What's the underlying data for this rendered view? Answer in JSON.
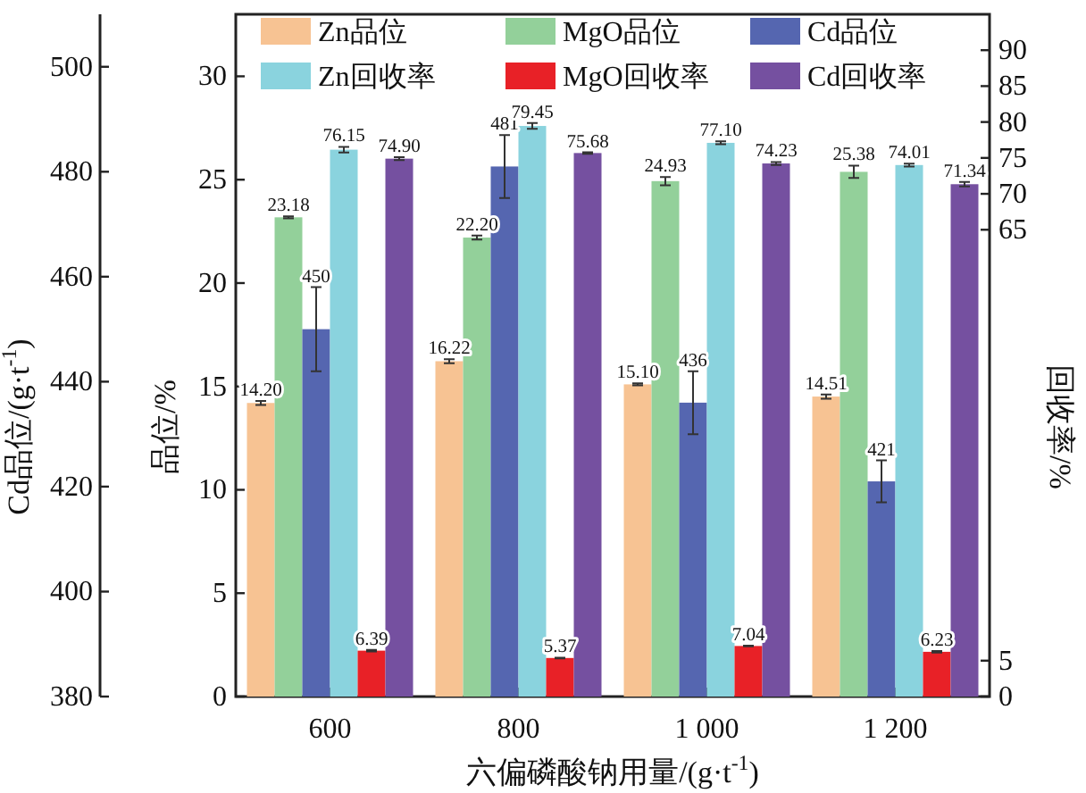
{
  "chart_data": {
    "type": "bar",
    "xlabel": "六偏磷酸钠用量/(g·t$^{-1}$)",
    "ylabel": "品位/%",
    "y2label": "回收率/%",
    "y3label": "Cd品位/(g·t$^{-1}$)",
    "categories": [
      "600",
      "800",
      "1 000",
      "1 200"
    ],
    "series": [
      {
        "name": "Zn品位",
        "color": "#f7c393",
        "values": [
          14.2,
          16.22,
          15.1,
          14.51
        ],
        "value_labels": [
          "14.20",
          "16.22",
          "15.10",
          "14.51"
        ],
        "errors": [
          0.1,
          0.1,
          0.05,
          0.1
        ]
      },
      {
        "name": "MgO品位",
        "color": "#93d09a",
        "values": [
          23.18,
          22.2,
          24.93,
          25.38
        ],
        "value_labels": [
          "23.18",
          "22.20",
          "24.93",
          "25.38"
        ],
        "errors": [
          0.05,
          0.1,
          0.2,
          0.3
        ]
      },
      {
        "name": "Cd品位",
        "color": "#5566b0",
        "axis": "y3",
        "values": [
          450,
          481,
          436,
          421
        ],
        "value_labels": [
          "450",
          "481",
          "436",
          "421"
        ],
        "errors": [
          8,
          6,
          6,
          4
        ]
      },
      {
        "name": "Zn回收率",
        "color": "#8ad3de",
        "axis": "y2",
        "values": [
          76.15,
          79.45,
          77.1,
          74.01
        ],
        "value_labels": [
          "76.15",
          "79.45",
          "77.10",
          "74.01"
        ],
        "errors": [
          0.4,
          0.4,
          0.2,
          0.2
        ]
      },
      {
        "name": "MgO回收率",
        "color": "#e82127",
        "axis": "y2",
        "values": [
          6.39,
          5.37,
          7.04,
          6.23
        ],
        "value_labels": [
          "6.39",
          "5.37",
          "7.04",
          "6.23"
        ],
        "errors": [
          0.1,
          0.05,
          0.05,
          0.1
        ]
      },
      {
        "name": "Cd回收率",
        "color": "#7550a0",
        "axis": "y2",
        "values": [
          74.9,
          75.68,
          74.23,
          71.34
        ],
        "value_labels": [
          "74.90",
          "75.68",
          "74.23",
          "71.34"
        ],
        "errors": [
          0.2,
          0.1,
          0.2,
          0.3
        ]
      }
    ],
    "ylim": [
      0,
      33
    ],
    "yticks": [
      0,
      5,
      10,
      15,
      20,
      25,
      30
    ],
    "y2lim": [
      0,
      95
    ],
    "y2ticks": [
      0,
      5,
      65,
      70,
      75,
      80,
      85,
      90
    ],
    "y3lim": [
      380,
      510
    ],
    "y3ticks": [
      380,
      400,
      420,
      440,
      460,
      480,
      500
    ],
    "legend": "top"
  }
}
